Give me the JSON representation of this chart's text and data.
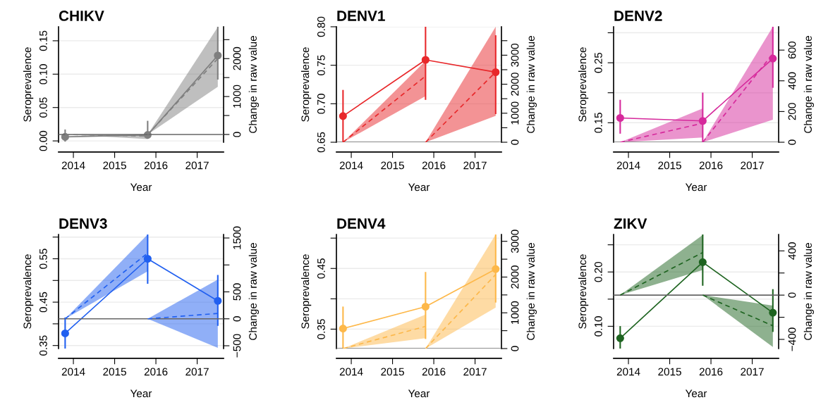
{
  "chart_data": [
    {
      "type": "line",
      "title": "CHIKV",
      "xlabel": "Year",
      "ylabel": "Seroprevalence",
      "y2label": "Change in raw value",
      "xlim": [
        2013.64,
        2017.64
      ],
      "xticks": [
        2014,
        2015,
        2016,
        2017
      ],
      "ylim": [
        -0.002,
        0.171
      ],
      "yticks": [
        {
          "value": 0,
          "label": "0.00"
        },
        0.05,
        {
          "value": 0.1,
          "label": "0.10"
        },
        0.15
      ],
      "y2lim": [
        -205,
        2840
      ],
      "y2ticks": [
        0,
        {
          "value": 500,
          "label": null
        },
        1000,
        {
          "value": 1500,
          "label": null
        },
        2000,
        {
          "value": 2500,
          "label": null
        }
      ],
      "grid": "y",
      "ref_lines": [
        {
          "axis": "y2",
          "value": 0,
          "color": "#666666"
        }
      ],
      "series": [
        {
          "color": "#7f7f7f",
          "x": [
            2013.8,
            2015.8,
            2017.5
          ],
          "values": [
            0.006,
            0.009,
            0.128
          ],
          "errors": [
            [
              0,
              0.016
            ],
            [
              0.005,
              0.029
            ],
            [
              0.093,
              0.171
            ]
          ],
          "marker": "circle",
          "line_style": "solid"
        },
        {
          "axis": "y2",
          "color": "#7f7f7f",
          "x": [
            2013.8,
            2015.8
          ],
          "values": [
            0,
            -40
          ],
          "lower": [
            0,
            -120
          ],
          "upper": [
            0,
            -10
          ],
          "marker": "none",
          "line_style": "dashed"
        },
        {
          "axis": "y2",
          "color": "#7f7f7f",
          "x": [
            2015.8,
            2017.5
          ],
          "values": [
            0,
            2000
          ],
          "lower": [
            0,
            1255
          ],
          "upper": [
            0,
            2830
          ],
          "marker": "none",
          "line_style": "dashed"
        }
      ]
    },
    {
      "type": "line",
      "title": "DENV1",
      "xlabel": "Year",
      "ylabel": "Seroprevalence",
      "y2label": "Change in raw value",
      "xlim": [
        2013.64,
        2017.64
      ],
      "xticks": [
        2014,
        2015,
        2016,
        2017
      ],
      "ylim": [
        0.65,
        0.8
      ],
      "yticks": [
        0.65,
        {
          "value": 0.7,
          "label": "0.70"
        },
        0.75,
        {
          "value": 0.8,
          "label": "0.80"
        }
      ],
      "y2lim": [
        0,
        3980
      ],
      "y2ticks": [
        0,
        {
          "value": 500,
          "label": null
        },
        1000,
        {
          "value": 1500,
          "label": null
        },
        2000,
        {
          "value": 2500,
          "label": null
        },
        3000,
        {
          "value": 3500,
          "label": null
        }
      ],
      "grid": "y",
      "ref_lines": [
        {
          "axis": "y2",
          "value": 0,
          "color": "#666666"
        }
      ],
      "series": [
        {
          "color": "#e8282b",
          "x": [
            2013.8,
            2015.8,
            2017.5
          ],
          "values": [
            0.684,
            0.757,
            0.741
          ],
          "errors": [
            [
              0.65,
              0.717
            ],
            [
              0.706,
              0.8
            ],
            [
              0.6875,
              0.788
            ]
          ],
          "marker": "circle",
          "line_style": "solid"
        },
        {
          "axis": "y2",
          "color": "#e8282b",
          "x": [
            2013.8,
            2015.8
          ],
          "values": [
            0,
            2280
          ],
          "lower": [
            0,
            1590
          ],
          "upper": [
            0,
            2800
          ],
          "marker": "none",
          "line_style": "dashed"
        },
        {
          "axis": "y2",
          "color": "#e8282b",
          "x": [
            2015.8,
            2017.5
          ],
          "values": [
            0,
            2420
          ],
          "lower": [
            0,
            911
          ],
          "upper": [
            0,
            3980
          ],
          "marker": "none",
          "line_style": "dashed"
        }
      ]
    },
    {
      "type": "line",
      "title": "DENV2",
      "xlabel": "Year",
      "ylabel": "Seroprevalence",
      "y2label": "Change in raw value",
      "xlim": [
        2013.64,
        2017.64
      ],
      "xticks": [
        2014,
        2015,
        2016,
        2017
      ],
      "ylim": [
        0.1175,
        0.31
      ],
      "yticks": [
        0.15,
        {
          "value": 0.2,
          "label": null
        },
        0.25,
        {
          "value": 0.3,
          "label": null
        }
      ],
      "y2lim": [
        0,
        752
      ],
      "y2ticks": [
        0,
        200,
        400,
        600
      ],
      "grid": "y",
      "ref_lines": [
        {
          "axis": "y2",
          "value": 0,
          "color": "#666666"
        }
      ],
      "series": [
        {
          "color": "#d62a9c",
          "x": [
            2013.8,
            2015.8,
            2017.5
          ],
          "values": [
            0.158,
            0.153,
            0.257
          ],
          "errors": [
            [
              0.133,
              0.187
            ],
            [
              0.1175,
              0.199
            ],
            [
              0.2095,
              0.31
            ]
          ],
          "marker": "circle",
          "line_style": "solid"
        },
        {
          "axis": "y2",
          "color": "#d62a9c",
          "x": [
            2013.8,
            2015.8
          ],
          "values": [
            0,
            124
          ],
          "lower": [
            0,
            31
          ],
          "upper": [
            0,
            220
          ],
          "marker": "none",
          "line_style": "dashed"
        },
        {
          "axis": "y2",
          "color": "#d62a9c",
          "x": [
            2015.8,
            2017.5
          ],
          "values": [
            0,
            577
          ],
          "lower": [
            0,
            147
          ],
          "upper": [
            0,
            752
          ],
          "marker": "none",
          "line_style": "dashed"
        }
      ]
    },
    {
      "type": "line",
      "title": "DENV3",
      "xlabel": "Year",
      "ylabel": "Seroprevalence",
      "y2label": "Change in raw value",
      "xlim": [
        2013.64,
        2017.64
      ],
      "xticks": [
        2014,
        2015,
        2016,
        2017
      ],
      "ylim": [
        0.343,
        0.606
      ],
      "yticks": [
        0.35,
        {
          "value": 0.4,
          "label": null
        },
        0.45,
        {
          "value": 0.5,
          "label": null
        },
        0.55,
        {
          "value": 0.6,
          "label": null
        }
      ],
      "y2lim": [
        -552,
        1565
      ],
      "y2ticks": [
        {
          "value": -500,
          "label": "−500"
        },
        0,
        500,
        {
          "value": 1000,
          "label": null
        },
        1500
      ],
      "grid": "y",
      "ref_lines": [
        {
          "axis": "y2",
          "value": 0,
          "color": "#666666"
        }
      ],
      "series": [
        {
          "color": "#2160f0",
          "x": [
            2013.8,
            2015.8,
            2017.5
          ],
          "values": [
            0.378,
            0.55,
            0.453
          ],
          "errors": [
            [
              0.343,
              0.413
            ],
            [
              0.494,
              0.605
            ],
            [
              0.397,
              0.511
            ]
          ],
          "marker": "circle",
          "line_style": "solid"
        },
        {
          "axis": "y2",
          "color": "#2160f0",
          "x": [
            2013.8,
            2015.8
          ],
          "values": [
            0,
            1220
          ],
          "lower": [
            0,
            883
          ],
          "upper": [
            0,
            1565
          ],
          "marker": "none",
          "line_style": "dashed"
        },
        {
          "axis": "y2",
          "color": "#2160f0",
          "x": [
            2015.8,
            2017.5
          ],
          "values": [
            0,
            100
          ],
          "lower": [
            0,
            -539
          ],
          "upper": [
            0,
            730
          ],
          "marker": "none",
          "line_style": "dashed"
        }
      ]
    },
    {
      "type": "line",
      "title": "DENV4",
      "xlabel": "Year",
      "ylabel": "Seroprevalence",
      "y2label": "Change in raw value",
      "xlim": [
        2013.64,
        2017.64
      ],
      "xticks": [
        2014,
        2015,
        2016,
        2017
      ],
      "ylim": [
        0.318,
        0.506
      ],
      "yticks": [
        0.35,
        {
          "value": 0.4,
          "label": null
        },
        0.45,
        {
          "value": 0.5,
          "label": null
        }
      ],
      "y2lim": [
        0,
        3191
      ],
      "y2ticks": [
        0,
        {
          "value": 500,
          "label": null
        },
        1000,
        {
          "value": 1500,
          "label": null
        },
        2000,
        {
          "value": 2500,
          "label": null
        },
        3000
      ],
      "grid": "y",
      "ref_lines": [
        {
          "axis": "y2",
          "value": 0,
          "color": "#666666"
        }
      ],
      "series": [
        {
          "color": "#fdb84a",
          "x": [
            2013.8,
            2015.8,
            2017.5
          ],
          "values": [
            0.351,
            0.387,
            0.449
          ],
          "errors": [
            [
              0.318,
              0.386
            ],
            [
              0.335,
              0.443
            ],
            [
              0.395,
              0.506
            ]
          ],
          "marker": "circle",
          "line_style": "solid"
        },
        {
          "axis": "y2",
          "color": "#fdb84a",
          "x": [
            2013.8,
            2015.8
          ],
          "values": [
            0,
            620
          ],
          "lower": [
            0,
            290
          ],
          "upper": [
            0,
            949
          ],
          "marker": "none",
          "line_style": "dashed"
        },
        {
          "axis": "y2",
          "color": "#fdb84a",
          "x": [
            2015.8,
            2017.5
          ],
          "values": [
            0,
            2070
          ],
          "lower": [
            0,
            1147
          ],
          "upper": [
            0,
            3190
          ],
          "marker": "none",
          "line_style": "dashed"
        }
      ]
    },
    {
      "type": "line",
      "title": "ZIKV",
      "xlabel": "Year",
      "ylabel": "Seroprevalence",
      "y2label": "Change in raw value",
      "xlim": [
        2013.64,
        2017.64
      ],
      "xticks": [
        2014,
        2015,
        2016,
        2017
      ],
      "ylim": [
        0.059,
        0.269
      ],
      "yticks": [
        {
          "value": 0.1,
          "label": "0.10"
        },
        {
          "value": 0.15,
          "label": null
        },
        {
          "value": 0.2,
          "label": "0.20"
        },
        {
          "value": 0.25,
          "label": null
        }
      ],
      "y2lim": [
        -483,
        548
      ],
      "y2ticks": [
        {
          "value": -400,
          "label": "−400"
        },
        {
          "value": -200,
          "label": null
        },
        0,
        {
          "value": 200,
          "label": null
        },
        400
      ],
      "grid": "y",
      "ref_lines": [
        {
          "axis": "y2",
          "value": 0,
          "color": "#666666"
        }
      ],
      "series": [
        {
          "color": "#1e6420",
          "x": [
            2013.8,
            2015.8,
            2017.5
          ],
          "values": [
            0.078,
            0.218,
            0.125
          ],
          "errors": [
            [
              0.059,
              0.099
            ],
            [
              0.176,
              0.269
            ],
            [
              0.091,
              0.167
            ]
          ],
          "marker": "circle",
          "line_style": "solid"
        },
        {
          "axis": "y2",
          "color": "#1e6420",
          "x": [
            2013.8,
            2015.8
          ],
          "values": [
            0,
            385
          ],
          "lower": [
            0,
            226
          ],
          "upper": [
            0,
            544
          ],
          "marker": "none",
          "line_style": "dashed"
        },
        {
          "axis": "y2",
          "color": "#1e6420",
          "x": [
            2015.8,
            2017.5
          ],
          "values": [
            0,
            -277
          ],
          "lower": [
            0,
            -468
          ],
          "upper": [
            0,
            -95
          ],
          "marker": "none",
          "line_style": "dashed"
        }
      ]
    }
  ]
}
